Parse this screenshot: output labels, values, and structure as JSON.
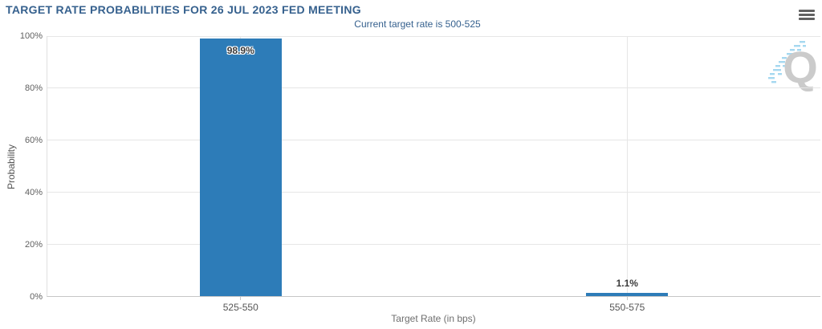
{
  "header": {
    "title": "TARGET RATE PROBABILITIES FOR 26 JUL 2023 FED MEETING",
    "subtitle": "Current target rate is 500-525"
  },
  "menu": {
    "icon": "hamburger-menu-icon"
  },
  "watermark": {
    "letter": "Q",
    "q_color": "#cbcbcb",
    "dash_color": "#a5d8f0"
  },
  "chart_data": {
    "type": "bar",
    "title": "TARGET RATE PROBABILITIES FOR 26 JUL 2023 FED MEETING",
    "subtitle": "Current target rate is 500-525",
    "categories": [
      "525-550",
      "550-575"
    ],
    "values": [
      98.9,
      1.1
    ],
    "value_labels": [
      "98.9%",
      "1.1%"
    ],
    "xlabel": "Target Rate (in bps)",
    "ylabel": "Probability",
    "ylim": [
      0,
      100
    ],
    "yticks": [
      0,
      20,
      40,
      60,
      80,
      100
    ],
    "ytick_labels": [
      "0%",
      "20%",
      "40%",
      "60%",
      "80%",
      "100%"
    ],
    "grid": true,
    "legend": "none",
    "bar_color": "#2d7cb8"
  }
}
